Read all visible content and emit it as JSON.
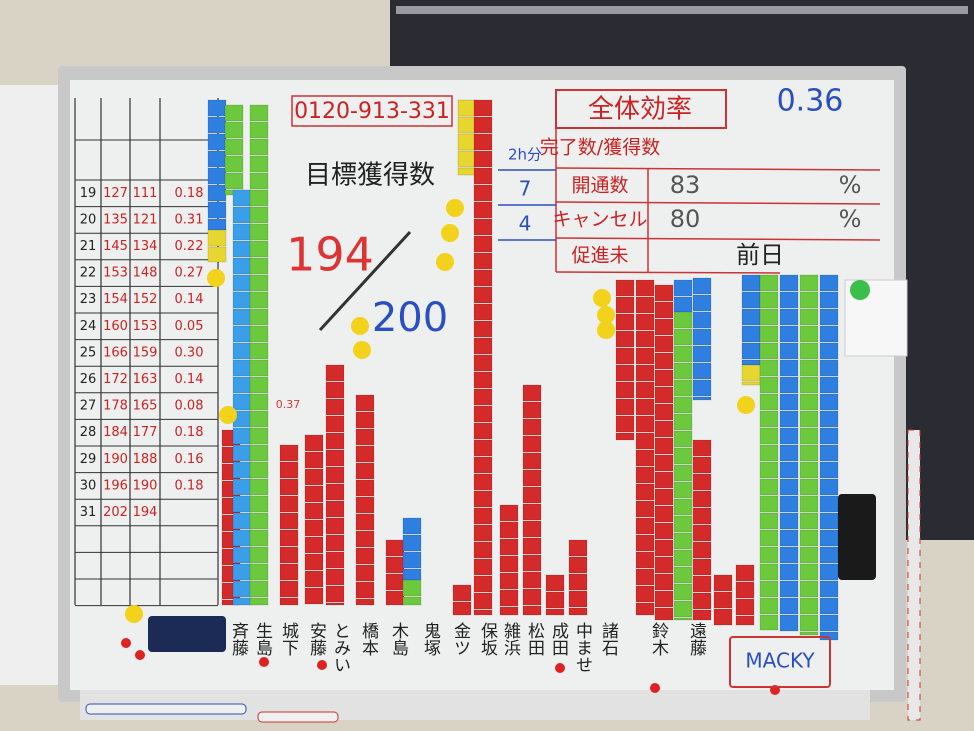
{
  "board": {
    "phone": "0120-913-331",
    "goal_label": "目標獲得数",
    "goal_current": "194",
    "goal_target": "200",
    "small_note": "0.37",
    "efficiency": {
      "label": "全体効率",
      "value": "0.36"
    },
    "stats": [
      [
        "完了数/獲得数"
      ],
      [
        "開通数",
        "83",
        "%"
      ],
      [
        "キャンセル",
        "80",
        "%"
      ],
      [
        "促進未",
        "前日"
      ]
    ],
    "side_notes": [
      "2h分",
      "7",
      "4"
    ],
    "daily_table": {
      "rows": [
        [
          "19",
          "127",
          "111",
          "0.18"
        ],
        [
          "20",
          "135",
          "121",
          "0.31"
        ],
        [
          "21",
          "145",
          "134",
          "0.22"
        ],
        [
          "22",
          "153",
          "148",
          "0.27"
        ],
        [
          "23",
          "154",
          "152",
          "0.14"
        ],
        [
          "24",
          "160",
          "153",
          "0.05"
        ],
        [
          "25",
          "166",
          "159",
          "0.30"
        ],
        [
          "26",
          "172",
          "163",
          "0.14"
        ],
        [
          "27",
          "178",
          "165",
          "0.08"
        ],
        [
          "28",
          "184",
          "177",
          "0.18"
        ],
        [
          "29",
          "190",
          "188",
          "0.16"
        ],
        [
          "30",
          "196",
          "190",
          "0.18"
        ],
        [
          "31",
          "202",
          "194"
        ]
      ]
    },
    "names": [
      "斉藤",
      "生島",
      "城下",
      "安藤",
      "とみい",
      "橋本",
      "木島",
      "鬼塚",
      "金ツ",
      "保坂",
      "雑浜",
      "松田",
      "成田",
      "中ませ",
      "諸石",
      "鈴木",
      "遠藤"
    ],
    "tag": "MACKY"
  }
}
